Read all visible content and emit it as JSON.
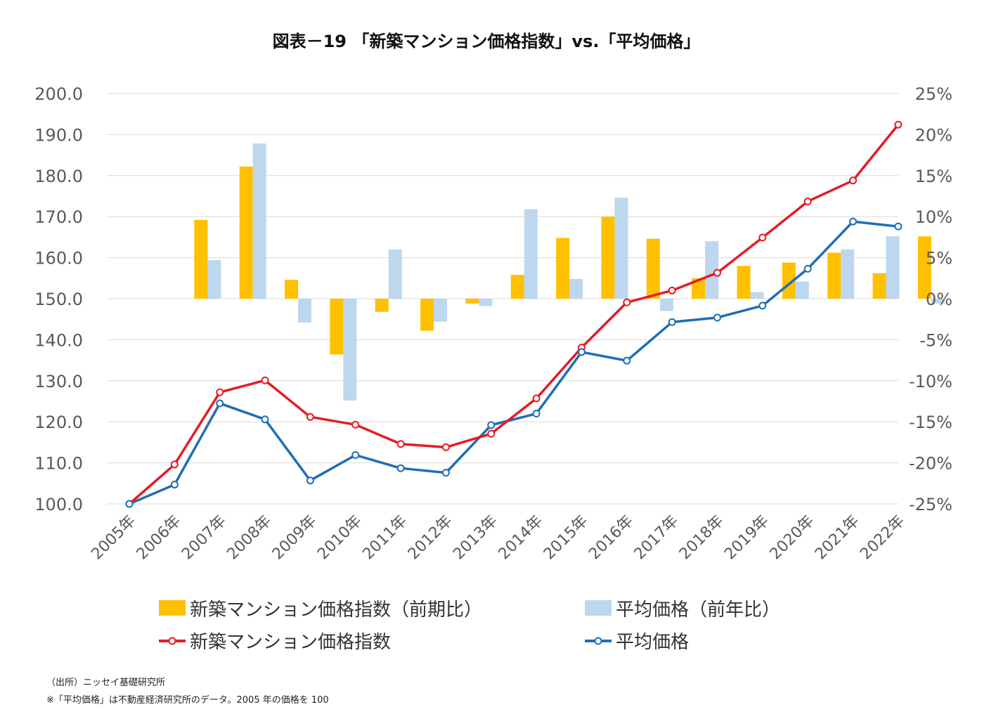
{
  "chart_data": {
    "type": "bar+line",
    "title": "図表－19 「新築マンション価格指数」vs.「平均価格」",
    "categories": [
      "2005年",
      "2006年",
      "2007年",
      "2008年",
      "2009年",
      "2010年",
      "2011年",
      "2012年",
      "2013年",
      "2014年",
      "2015年",
      "2016年",
      "2017年",
      "2018年",
      "2019年",
      "2020年",
      "2021年",
      "2022年"
    ],
    "y_left": {
      "range": [
        100,
        200
      ],
      "ticks": [
        "100.0",
        "110.0",
        "120.0",
        "130.0",
        "140.0",
        "150.0",
        "160.0",
        "170.0",
        "180.0",
        "190.0",
        "200.0"
      ]
    },
    "y_right": {
      "range": [
        -25,
        25
      ],
      "ticks": [
        "-25%",
        "-20%",
        "-15%",
        "-10%",
        "-5%",
        "0%",
        "5%",
        "10%",
        "15%",
        "20%",
        "25%"
      ]
    },
    "bar_series": [
      {
        "name": "新築マンション価格指数（前期比）",
        "color": "#FFC000",
        "axis": "right",
        "values": [
          null,
          9.6,
          16.1,
          2.3,
          -6.8,
          -1.6,
          -3.9,
          -0.6,
          2.9,
          7.4,
          10.0,
          7.3,
          2.5,
          4.0,
          4.4,
          5.6,
          3.1,
          7.6
        ]
      },
      {
        "name": "平均価格（前年比）",
        "color": "#BDD7EE",
        "axis": "right",
        "values": [
          null,
          4.7,
          18.9,
          -2.9,
          -12.4,
          6.0,
          -2.8,
          -0.9,
          10.9,
          2.4,
          12.3,
          -1.5,
          7.0,
          0.8,
          2.1,
          6.0,
          7.6,
          -0.6
        ]
      }
    ],
    "line_series": [
      {
        "name": "新築マンション価格指数",
        "color": "#E51C23",
        "axis": "left",
        "values": [
          100.0,
          109.6,
          127.2,
          130.1,
          121.2,
          119.3,
          114.6,
          113.8,
          117.1,
          125.7,
          138.1,
          149.1,
          152.0,
          156.3,
          164.9,
          173.7,
          178.8,
          192.4
        ]
      },
      {
        "name": "平均価格",
        "color": "#1F6EB5",
        "axis": "left",
        "values": [
          100.0,
          104.7,
          124.5,
          120.6,
          105.7,
          111.9,
          108.7,
          107.6,
          119.2,
          122.0,
          137.0,
          134.9,
          144.3,
          145.4,
          148.3,
          157.3,
          168.8,
          167.6
        ]
      }
    ],
    "legend": [
      {
        "label": "新築マンション価格指数（前期比）",
        "kind": "bar",
        "color": "#FFC000"
      },
      {
        "label": "平均価格（前年比）",
        "kind": "bar",
        "color": "#BDD7EE"
      },
      {
        "label": "新築マンション価格指数",
        "kind": "line",
        "color": "#E51C23"
      },
      {
        "label": "平均価格",
        "kind": "line",
        "color": "#1F6EB5"
      }
    ],
    "legend_position": "bottom",
    "grid": true
  },
  "notes": [
    "（出所）ニッセイ基礎研究所",
    "※「平均価格」は不動産経済研究所のデータ。2005 年の価格を 100"
  ]
}
